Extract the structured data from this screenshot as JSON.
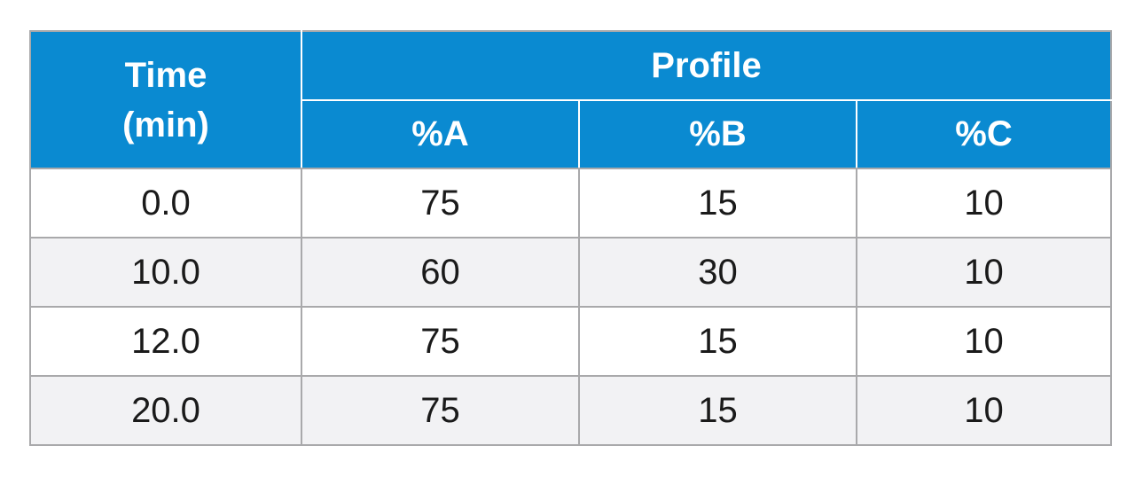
{
  "header": {
    "time_line1": "Time",
    "time_line2": "(min)",
    "profile": "Profile",
    "col_a": "%A",
    "col_b": "%B",
    "col_c": "%C"
  },
  "colors": {
    "header_bg": "#0a8ad1",
    "header_text": "#ffffff",
    "row_alt_bg": "#f2f2f4",
    "border": "#a9a9ab"
  },
  "rows": [
    {
      "time": "0.0",
      "a": "75",
      "b": "15",
      "c": "10"
    },
    {
      "time": "10.0",
      "a": "60",
      "b": "30",
      "c": "10"
    },
    {
      "time": "12.0",
      "a": "75",
      "b": "15",
      "c": "10"
    },
    {
      "time": "20.0",
      "a": "75",
      "b": "15",
      "c": "10"
    }
  ]
}
